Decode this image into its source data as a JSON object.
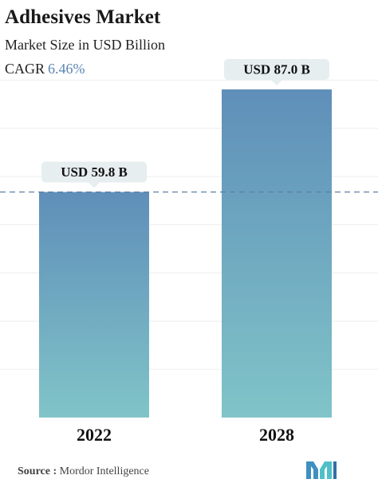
{
  "header": {
    "title": "Adhesives Market",
    "subtitle": "Market Size in USD Billion",
    "cagr_label": "CAGR",
    "cagr_value": "6.46%"
  },
  "chart_data": {
    "type": "bar",
    "title": "Adhesives Market",
    "subtitle": "Market Size in USD Billion",
    "categories": [
      "2022",
      "2028"
    ],
    "values": [
      59.8,
      87.0
    ],
    "data_labels": [
      "USD 59.8 B",
      "USD 87.0 B"
    ],
    "unit": "USD Billion",
    "ylim": [
      0,
      87.0
    ],
    "reference_line": 59.8,
    "grid": true,
    "legend": "none",
    "colors": {
      "bar_top": "#5f8fb9",
      "bar_bottom": "#80c4c8",
      "label_bg": "#e6eeef",
      "reference_line": "#5a7fa6",
      "grid": "#eeeeee"
    }
  },
  "footer": {
    "source_label": "Source :",
    "source_text": "Mordor Intelligence",
    "logo_icon": "mordor-intelligence-logo-icon"
  }
}
